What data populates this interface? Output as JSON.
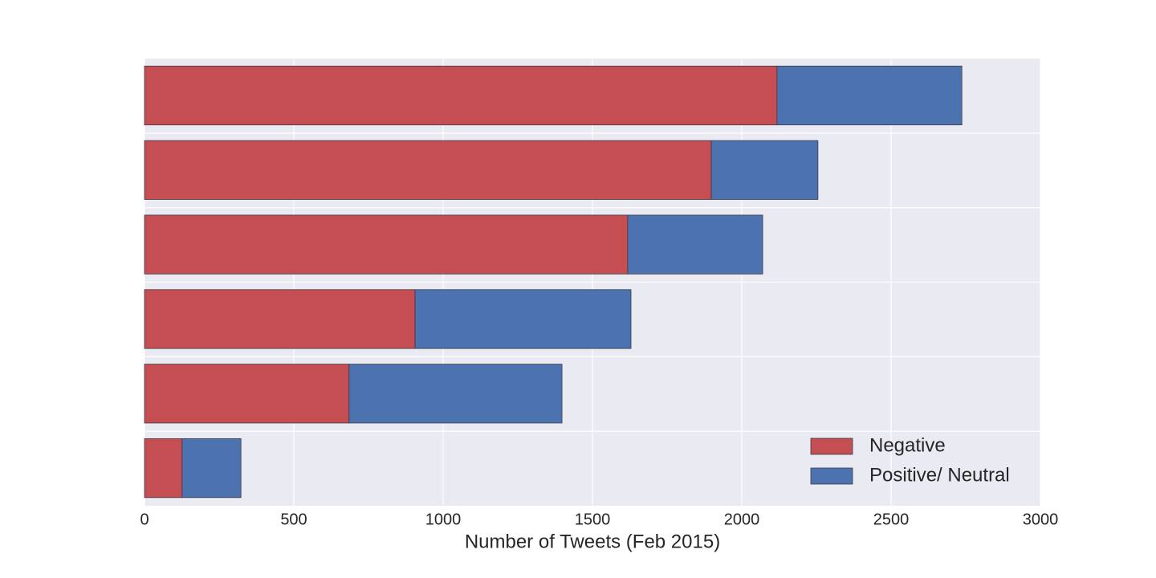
{
  "chart_data": {
    "type": "barh_stacked",
    "xlabel": "Number of Tweets (Feb 2015)",
    "categories": [
      null,
      null,
      null,
      null,
      null,
      null
    ],
    "series": [
      {
        "name": "Negative",
        "color": "#c44e52",
        "values": [
          2118,
          1898,
          1618,
          906,
          685,
          126
        ]
      },
      {
        "name": "Positive/ Neutral",
        "color": "#4c72b0",
        "values": [
          619,
          357,
          452,
          723,
          713,
          197
        ]
      }
    ],
    "xlim": [
      0,
      3000
    ],
    "xticks": [
      0,
      500,
      1000,
      1500,
      2000,
      2500,
      3000
    ],
    "grid": true,
    "legend": "lower right"
  }
}
